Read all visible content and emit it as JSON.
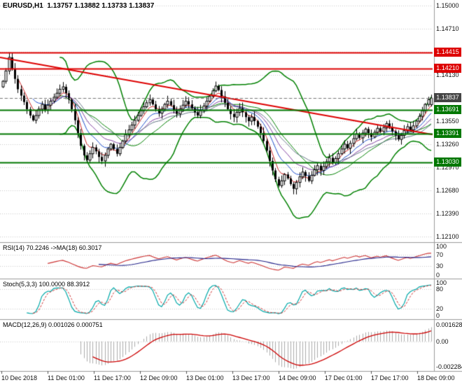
{
  "window": {
    "title_symbol": "EURUSD,H1",
    "title_ohlc": "1.13757 1.13882 1.13733 1.13837"
  },
  "colors": {
    "background": "#ffffff",
    "grid": "#c9c9c9",
    "separator": "#9a9a9a",
    "axis_text": "#111111",
    "candle": "#000000",
    "bollinger": "#008000",
    "trendline": "#dd0000",
    "resistance": "#dd0000",
    "support": "#007700",
    "current_tag": "#444444",
    "current_line": "#777777",
    "rsi_line": "#cc3333",
    "rsi_ma": "#222288",
    "stoch_k": "#00a8a8",
    "stoch_d": "#cc3333",
    "macd_main": "#ababab",
    "macd_signal": "#cc0000"
  },
  "price_axis": {
    "ticks": [
      {
        "label": "1.15000",
        "shown": true
      },
      {
        "label": "1.14710",
        "shown": true
      },
      {
        "label": "1.14420",
        "shown": false
      },
      {
        "label": "1.14130",
        "shown": true
      },
      {
        "label": "1.13840",
        "shown": false
      },
      {
        "label": "1.13550",
        "shown": true
      },
      {
        "label": "1.13260",
        "shown": true
      },
      {
        "label": "1.12970",
        "shown": true
      },
      {
        "label": "1.12680",
        "shown": true
      },
      {
        "label": "1.12390",
        "shown": true
      },
      {
        "label": "1.12100",
        "shown": true
      }
    ],
    "tags": [
      {
        "label": "1.14415",
        "price": 1.14415,
        "type": "resistance"
      },
      {
        "label": "1.14210",
        "price": 1.1421,
        "type": "resistance"
      },
      {
        "label": "1.13837",
        "price": 1.13837,
        "type": "current"
      },
      {
        "label": "1.13691",
        "price": 1.13691,
        "type": "support"
      },
      {
        "label": "1.13391",
        "price": 1.13391,
        "type": "support"
      },
      {
        "label": "1.13030",
        "price": 1.1303,
        "type": "support"
      }
    ]
  },
  "panes": {
    "rsi": {
      "label": "RSI(14) 70.2246  ->MA(18) 60.3017",
      "scale": [
        "100",
        "70",
        "30",
        "0"
      ],
      "levels": [
        70,
        30
      ]
    },
    "stoch": {
      "label": "Stoch(5,3,3) 100.0000 88.3912",
      "scale": [
        "100",
        "80",
        "20",
        "0"
      ],
      "levels": [
        80,
        20
      ]
    },
    "macd": {
      "label": "MACD(12,26,9) 0.001026 0.000751",
      "scale": [
        "0.0016280",
        "0.00",
        "-0.0022840"
      ],
      "range": [
        -0.002284,
        0.001628
      ]
    }
  },
  "chart_data": {
    "type": "candlestick",
    "symbol": "EURUSD",
    "timeframe": "H1",
    "title": "EURUSD,H1",
    "last_ohlc": {
      "open": 1.13757,
      "high": 1.13882,
      "low": 1.13733,
      "close": 1.13837
    },
    "y_range": [
      1.121,
      1.15
    ],
    "x_labels": [
      "10 Dec 2018",
      "11 Dec 01:00",
      "11 Dec 17:00",
      "12 Dec 09:00",
      "13 Dec 01:00",
      "13 Dec 17:00",
      "14 Dec 09:00",
      "17 Dec 01:00",
      "17 Dec 17:00",
      "18 Dec 09:00"
    ],
    "first_open": 1.1398,
    "closes": [
      1.1405,
      1.1418,
      1.1435,
      1.1421,
      1.1408,
      1.1395,
      1.1387,
      1.1379,
      1.137,
      1.1362,
      1.1356,
      1.1362,
      1.137,
      1.1376,
      1.1369,
      1.1375,
      1.138,
      1.1385,
      1.139,
      1.1395,
      1.1398,
      1.139,
      1.1382,
      1.137,
      1.1356,
      1.134,
      1.1324,
      1.1312,
      1.1306,
      1.1314,
      1.1322,
      1.1317,
      1.131,
      1.1305,
      1.1312,
      1.132,
      1.1326,
      1.132,
      1.1314,
      1.1322,
      1.133,
      1.1338,
      1.1344,
      1.135,
      1.1356,
      1.1362,
      1.1368,
      1.1373,
      1.1378,
      1.1382,
      1.1376,
      1.137,
      1.1365,
      1.137,
      1.1376,
      1.138,
      1.1375,
      1.1369,
      1.1364,
      1.137,
      1.1375,
      1.138,
      1.1376,
      1.1371,
      1.1366,
      1.1362,
      1.1368,
      1.1374,
      1.138,
      1.1386,
      1.1393,
      1.1399,
      1.1394,
      1.1386,
      1.1378,
      1.137,
      1.1364,
      1.136,
      1.1366,
      1.1371,
      1.1366,
      1.136,
      1.1355,
      1.136,
      1.1355,
      1.1348,
      1.134,
      1.133,
      1.1318,
      1.1305,
      1.1293,
      1.1282,
      1.1274,
      1.128,
      1.1288,
      1.1283,
      1.1276,
      1.127,
      1.1278,
      1.1285,
      1.1291,
      1.1286,
      1.128,
      1.1287,
      1.1294,
      1.1299,
      1.1293,
      1.1298,
      1.1304,
      1.1309,
      1.1303,
      1.1308,
      1.1314,
      1.132,
      1.1326,
      1.1321,
      1.1327,
      1.1333,
      1.1339,
      1.1334,
      1.134,
      1.1345,
      1.134,
      1.1335,
      1.1341,
      1.1346,
      1.1342,
      1.1347,
      1.1352,
      1.1347,
      1.1342,
      1.1337,
      1.1332,
      1.1337,
      1.1343,
      1.1348,
      1.1344,
      1.1349,
      1.1355,
      1.1361,
      1.1368,
      1.1376,
      1.1382,
      1.13837
    ],
    "bollinger": {
      "period": 20,
      "deviation": 2.3
    },
    "moving_averages": [
      {
        "period": 5,
        "color": "#cc2020"
      },
      {
        "period": 10,
        "color": "#2050cc"
      },
      {
        "period": 16,
        "color": "#8040a0"
      },
      {
        "period": 24,
        "color": "#667788"
      }
    ],
    "levels": {
      "resistance": [
        1.14415,
        1.1421
      ],
      "support": [
        1.13691,
        1.13391,
        1.1303
      ],
      "current": 1.13837
    },
    "trendline": {
      "start_price": 1.1435,
      "end_price": 1.1338
    },
    "indicators": {
      "rsi": {
        "period": 14,
        "ma_period": 18,
        "value": 70.2246,
        "ma_value": 60.3017
      },
      "stochastic": {
        "k": 5,
        "slowing": 3,
        "d": 3,
        "value": 100.0,
        "signal": 88.3912
      },
      "macd": {
        "fast": 12,
        "slow": 26,
        "signal": 9,
        "value": 0.001026,
        "signal_value": 0.000751
      }
    }
  }
}
